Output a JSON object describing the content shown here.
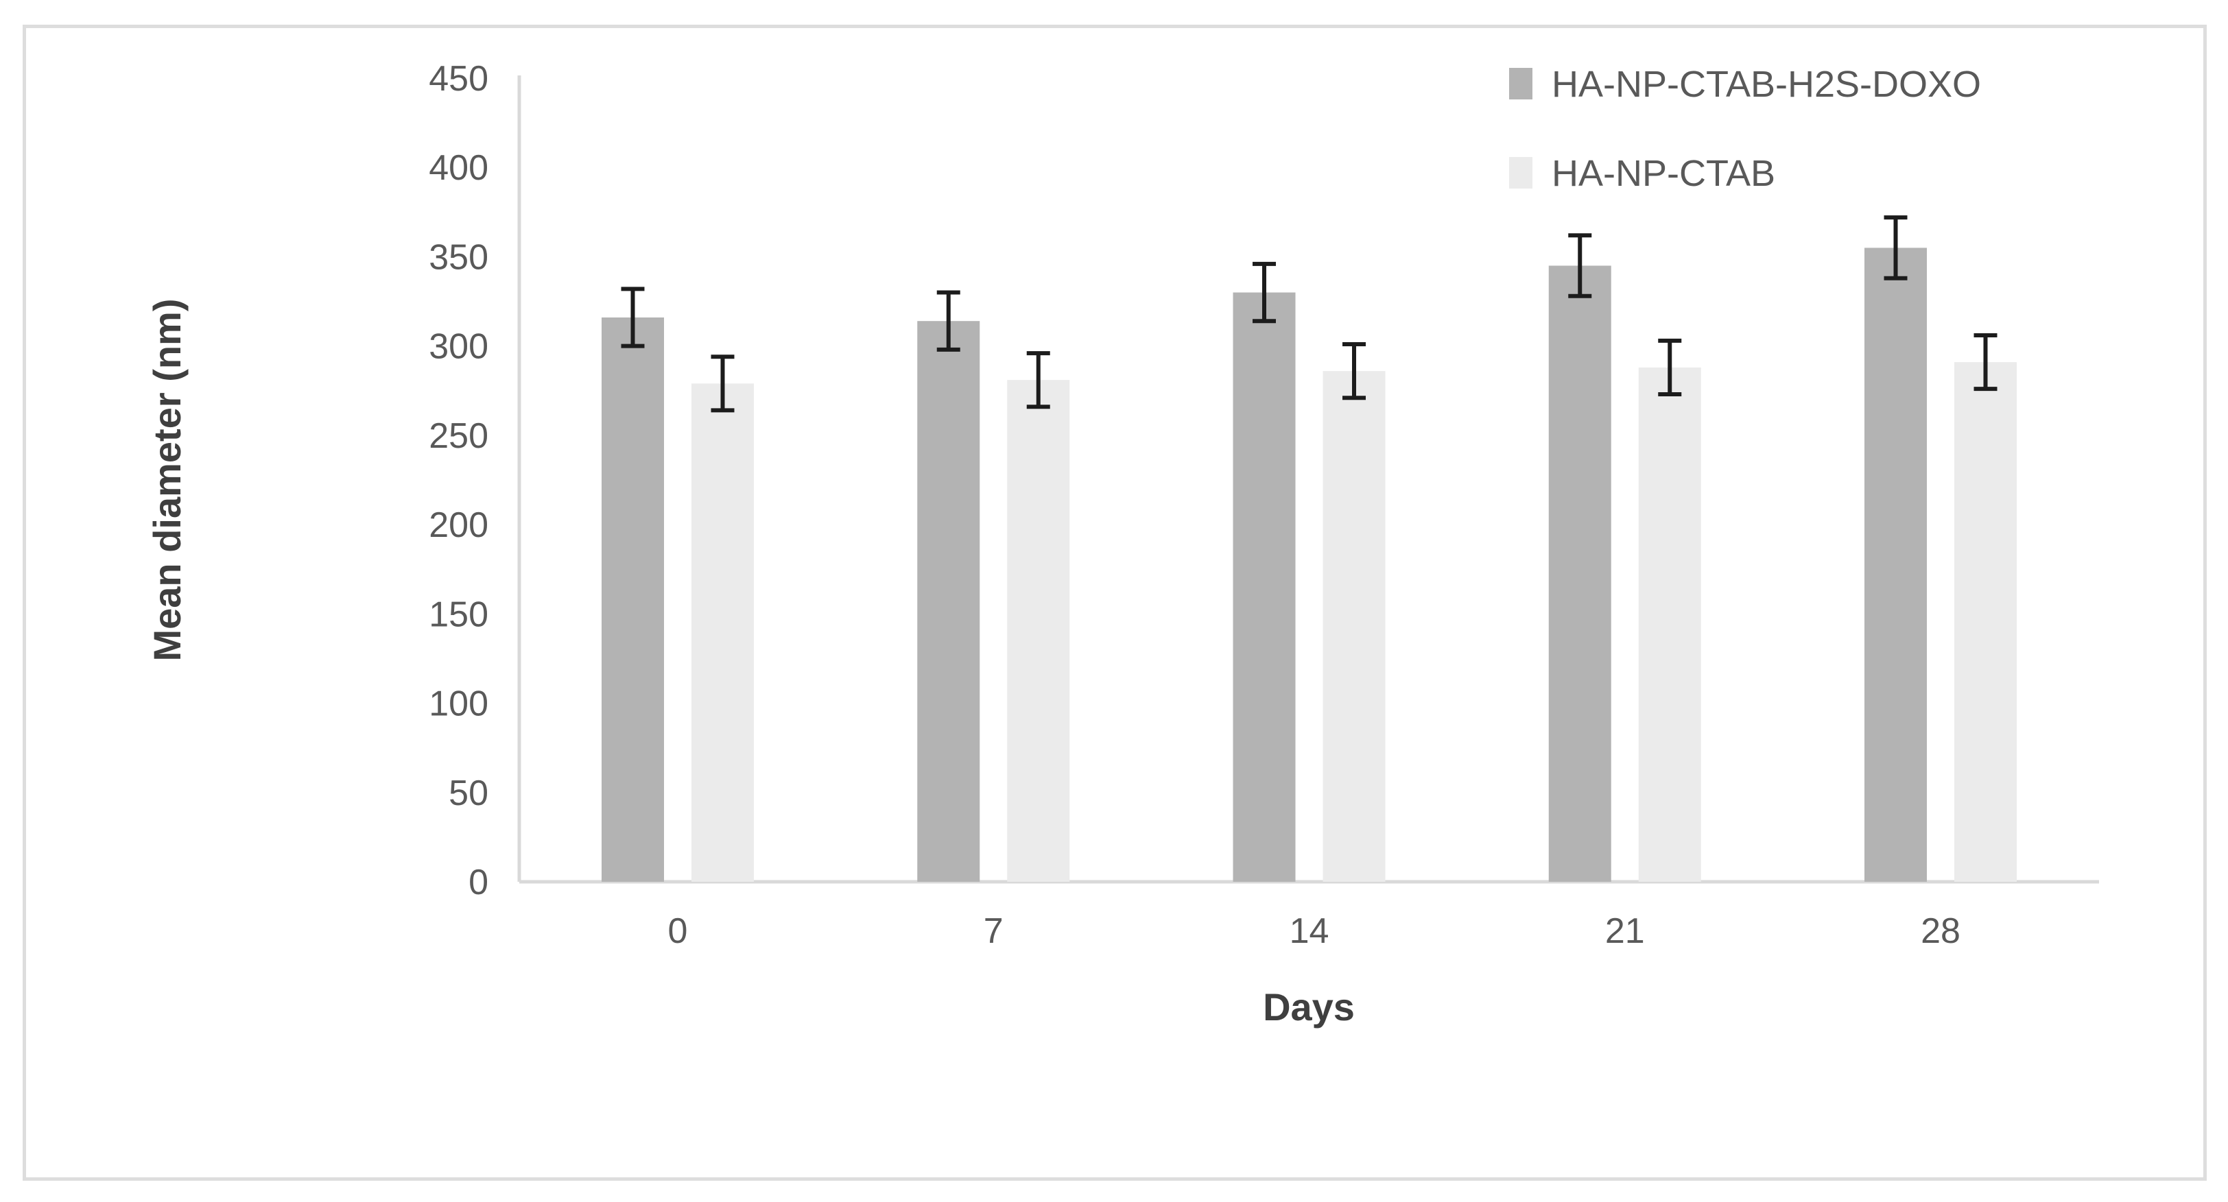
{
  "chart_data": {
    "type": "bar",
    "title": "",
    "xlabel": "Days",
    "ylabel": "Mean diameter (nm)",
    "categories": [
      "0",
      "7",
      "14",
      "21",
      "28"
    ],
    "series": [
      {
        "name": "HA-NP-CTAB-H2S-DOXO",
        "color": "#b3b3b3",
        "values": [
          316,
          314,
          330,
          345,
          355
        ],
        "errors": [
          16,
          16,
          16,
          17,
          17
        ]
      },
      {
        "name": "HA-NP-CTAB",
        "color": "#ebebeb",
        "values": [
          279,
          281,
          286,
          288,
          291
        ],
        "errors": [
          15,
          15,
          15,
          15,
          15
        ]
      }
    ],
    "ylim": [
      0,
      450
    ],
    "yticks": [
      0,
      50,
      100,
      150,
      200,
      250,
      300,
      350,
      400,
      450
    ],
    "grid": false,
    "legend_position": "top-right",
    "error_bars": true,
    "colors": {
      "axis_line": "#d9d9d9",
      "error_bar": "#1c1c1c",
      "tick_text": "#595959",
      "axis_title_text": "#3f3f3f",
      "panel_border": "#dddddd",
      "background": "#ffffff"
    }
  }
}
